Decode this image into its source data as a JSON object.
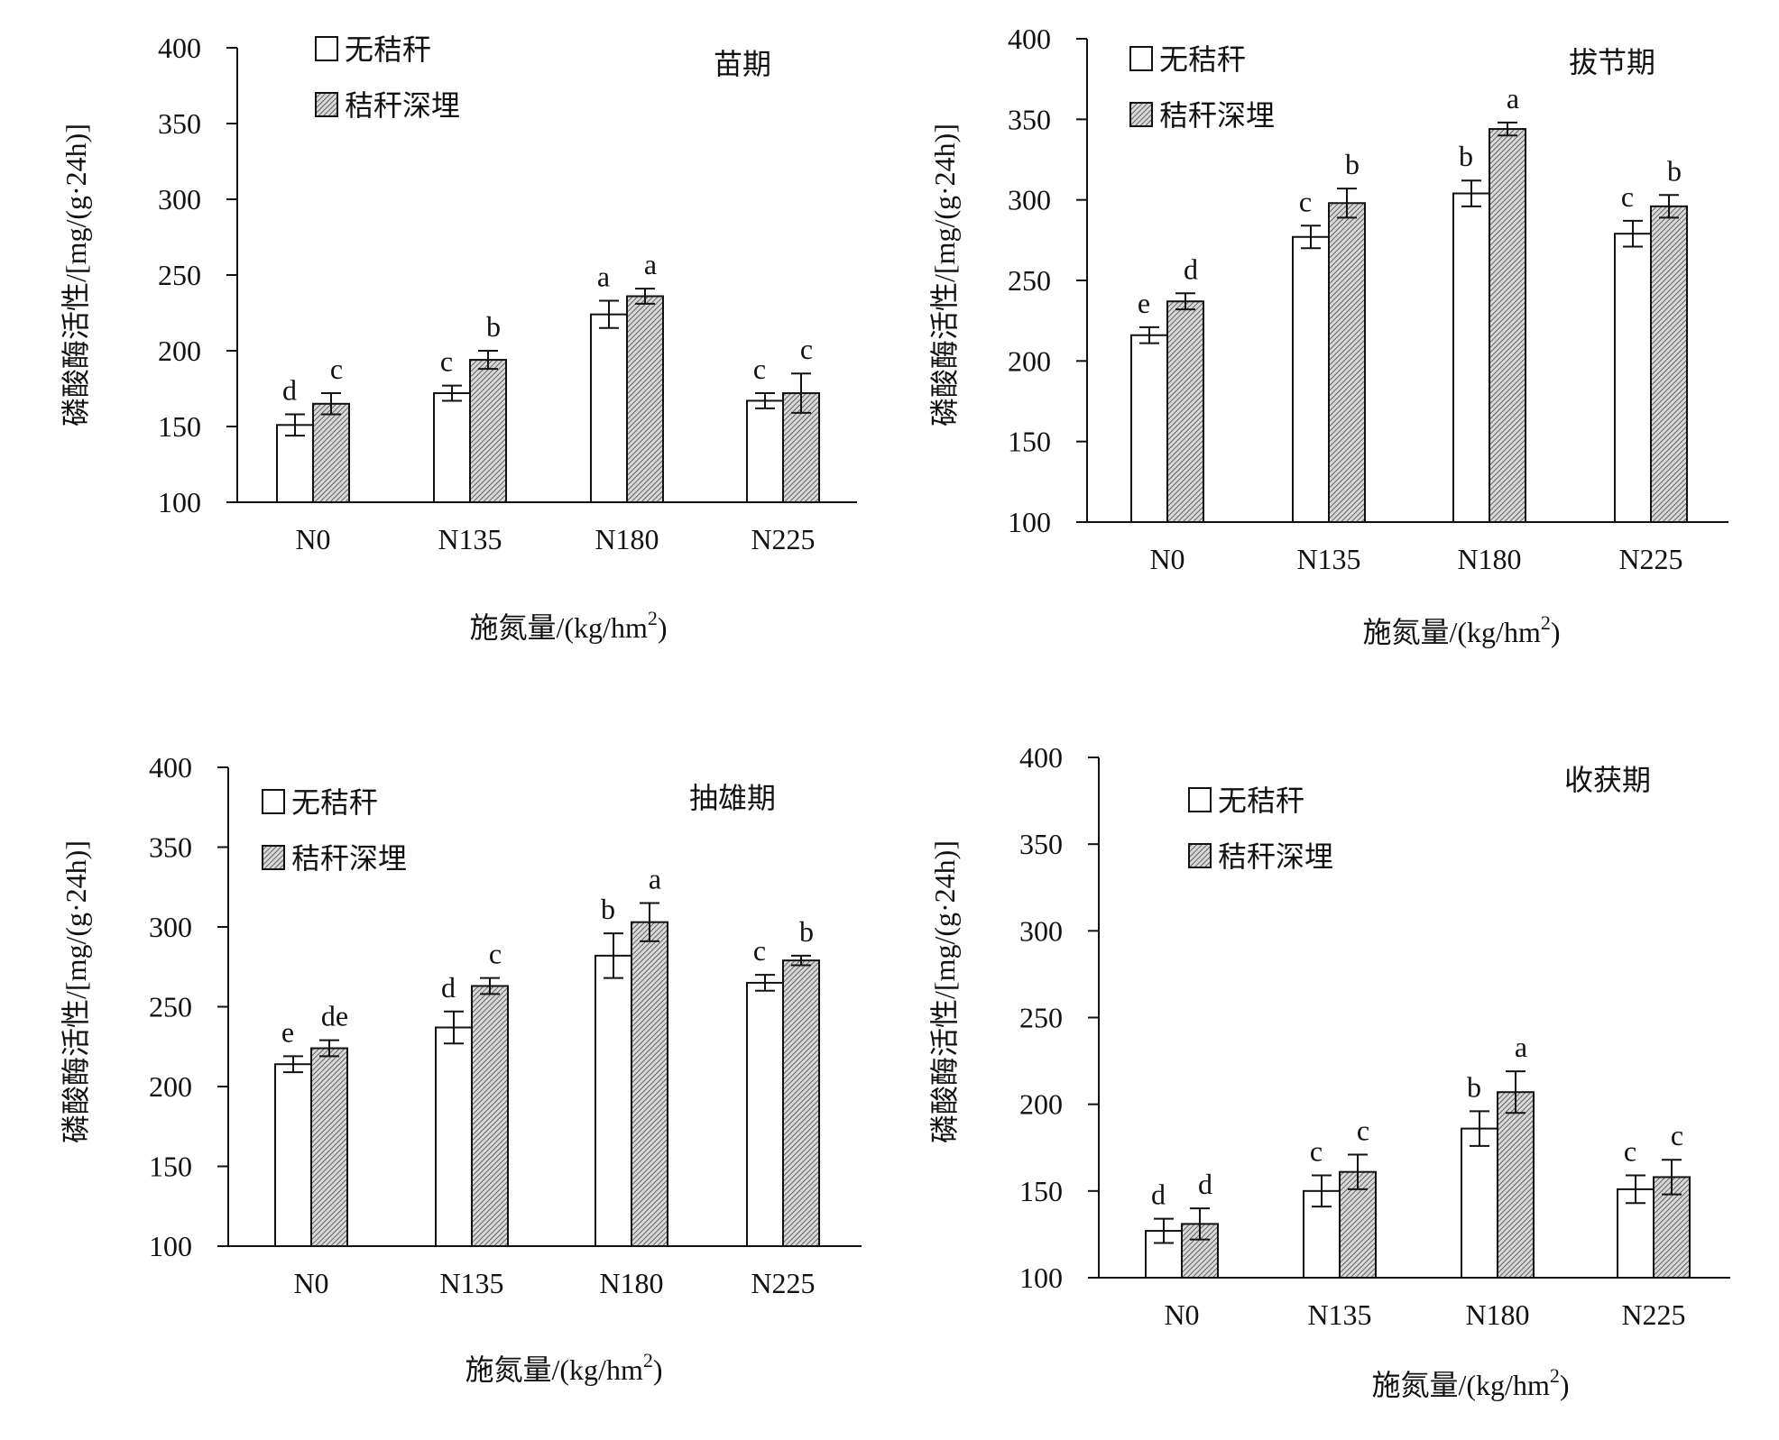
{
  "colors": {
    "no_straw_fill": "#ffffff",
    "straw_fill": "#9a9a9a",
    "stroke": "#111111"
  },
  "chart_data": [
    {
      "type": "bar",
      "stage": "苗期",
      "categories": [
        "N0",
        "N135",
        "N180",
        "N225"
      ],
      "xlabel": "施氮量/(kg/hm",
      "xlabel_sup": "2",
      "xlabel_end": ")",
      "ylabel": "磷酸酶活性/[mg/(g·24h)]",
      "ylim": [
        100,
        400
      ],
      "yticks": [
        "100",
        "150",
        "200",
        "250",
        "300",
        "350",
        "400"
      ],
      "series": [
        {
          "name": "无秸秆",
          "values": [
            151,
            172,
            224,
            167
          ],
          "errors": [
            7,
            5,
            9,
            5
          ],
          "letters": [
            "d",
            "c",
            "a",
            "c"
          ]
        },
        {
          "name": "秸秆深埋",
          "values": [
            165,
            194,
            236,
            172
          ],
          "errors": [
            7,
            6,
            5,
            13
          ],
          "letters": [
            "c",
            "b",
            "a",
            "c"
          ]
        }
      ]
    },
    {
      "type": "bar",
      "stage": "拔节期",
      "categories": [
        "N0",
        "N135",
        "N180",
        "N225"
      ],
      "xlabel": "施氮量/(kg/hm",
      "xlabel_sup": "2",
      "xlabel_end": ")",
      "ylabel": "磷酸酶活性/[mg/(g·24h)]",
      "ylim": [
        100,
        400
      ],
      "yticks": [
        "100",
        "150",
        "200",
        "250",
        "300",
        "350",
        "400"
      ],
      "series": [
        {
          "name": "无秸秆",
          "values": [
            216,
            277,
            304,
            279
          ],
          "errors": [
            5,
            7,
            8,
            8
          ],
          "letters": [
            "e",
            "c",
            "b",
            "c"
          ]
        },
        {
          "name": "秸秆深埋",
          "values": [
            237,
            298,
            344,
            296
          ],
          "errors": [
            5,
            9,
            4,
            7
          ],
          "letters": [
            "d",
            "b",
            "a",
            "b"
          ]
        }
      ]
    },
    {
      "type": "bar",
      "stage": "抽雄期",
      "categories": [
        "N0",
        "N135",
        "N180",
        "N225"
      ],
      "xlabel": "施氮量/(kg/hm",
      "xlabel_sup": "2",
      "xlabel_end": ")",
      "ylabel": "磷酸酶活性/[mg/(g·24h)]",
      "ylim": [
        100,
        400
      ],
      "yticks": [
        "100",
        "150",
        "200",
        "250",
        "300",
        "350",
        "400"
      ],
      "series": [
        {
          "name": "无秸秆",
          "values": [
            214,
            237,
            282,
            265
          ],
          "errors": [
            5,
            10,
            14,
            5
          ],
          "letters": [
            "e",
            "d",
            "b",
            "c"
          ]
        },
        {
          "name": "秸秆深埋",
          "values": [
            224,
            263,
            303,
            279
          ],
          "errors": [
            5,
            5,
            12,
            3
          ],
          "letters": [
            "de",
            "c",
            "a",
            "b"
          ]
        }
      ]
    },
    {
      "type": "bar",
      "stage": "收获期",
      "categories": [
        "N0",
        "N135",
        "N180",
        "N225"
      ],
      "xlabel": "施氮量/(kg/hm",
      "xlabel_sup": "2",
      "xlabel_end": ")",
      "ylabel": "磷酸酶活性/[mg/(g·24h)]",
      "ylim": [
        100,
        400
      ],
      "yticks": [
        "100",
        "150",
        "200",
        "250",
        "300",
        "350",
        "400"
      ],
      "series": [
        {
          "name": "无秸秆",
          "values": [
            127,
            150,
            186,
            151
          ],
          "errors": [
            7,
            9,
            10,
            8
          ],
          "letters": [
            "d",
            "c",
            "b",
            "c"
          ]
        },
        {
          "name": "秸秆深埋",
          "values": [
            131,
            161,
            207,
            158
          ],
          "errors": [
            9,
            10,
            12,
            10
          ],
          "letters": [
            "d",
            "c",
            "a",
            "c"
          ]
        }
      ]
    }
  ]
}
